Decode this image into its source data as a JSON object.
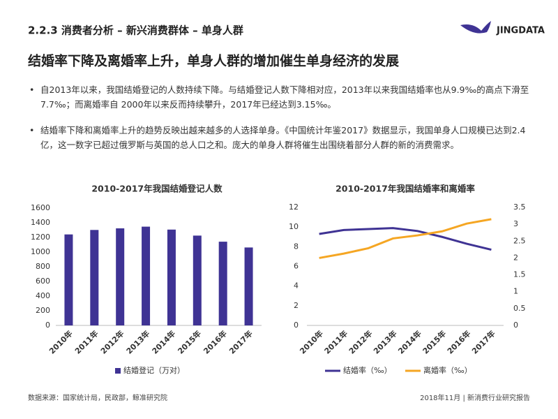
{
  "header": {
    "section": "2.2.3 消费者分析 – 新兴消费群体 – 单身人群",
    "logo": "JINGDATA",
    "heading": "结婚率下降及离婚率上升，单身人群的增加催生单身经济的发展"
  },
  "bullets": [
    "自2013年以来，我国结婚登记的人数持续下降。与结婚登记人数下降相对应，2013年以来我国结婚率也从9.9‰的高点下滑至7.7‰；而离婚率自 2000年以来反而持续攀升，2017年已经达到3.15‰。",
    "结婚率下降和离婚率上升的趋势反映出越来越多的人选择单身。《中国统计年鉴2017》数据显示，我国单身人口规模已达到2.4亿，这一数字已超过俄罗斯与英国的总人口之和。庞大的单身人群将催生出围绕着部分人群的新的消费需求。"
  ],
  "chart_data": [
    {
      "type": "bar",
      "title": "2010-2017年我国结婚登记人数",
      "categories": [
        "2010年",
        "2011年",
        "2012年",
        "2013年",
        "2014年",
        "2015年",
        "2016年",
        "2017年"
      ],
      "series": [
        {
          "name": "结婚登记（万对）",
          "color": "#3f3394",
          "values": [
            1241,
            1302,
            1324,
            1347,
            1307,
            1225,
            1142,
            1063
          ]
        }
      ],
      "ylim": [
        0,
        1600
      ],
      "yticks": [
        0,
        200,
        400,
        600,
        800,
        1000,
        1200,
        1400,
        1600
      ],
      "grid": false,
      "legend": "bottom"
    },
    {
      "type": "line",
      "title": "2010-2017年我国结婚率和离婚率",
      "categories": [
        "2010年",
        "2011年",
        "2012年",
        "2013年",
        "2014年",
        "2015年",
        "2016年",
        "2017年"
      ],
      "series": [
        {
          "name": "结婚率（‰）",
          "color": "#3f3394",
          "values": [
            9.3,
            9.7,
            9.8,
            9.9,
            9.6,
            9.0,
            8.3,
            7.7
          ]
        },
        {
          "name": "离婚率（‰）",
          "color": "#f5a623",
          "axis": "y2",
          "values": [
            2.0,
            2.13,
            2.29,
            2.58,
            2.67,
            2.79,
            3.02,
            3.15
          ]
        }
      ],
      "ylim": [
        0,
        12
      ],
      "yticks": [
        0,
        2,
        4,
        6,
        8,
        10,
        12
      ],
      "y2lim": [
        0,
        3.5
      ],
      "y2ticks": [
        0,
        0.5,
        1,
        1.5,
        2,
        2.5,
        3,
        3.5
      ],
      "grid": false,
      "legend": "bottom"
    }
  ],
  "footer": {
    "source": "数据来源：国家统计局，民政部，鲸准研究院",
    "report": "2018年11月 | 新消费行业研究报告"
  }
}
